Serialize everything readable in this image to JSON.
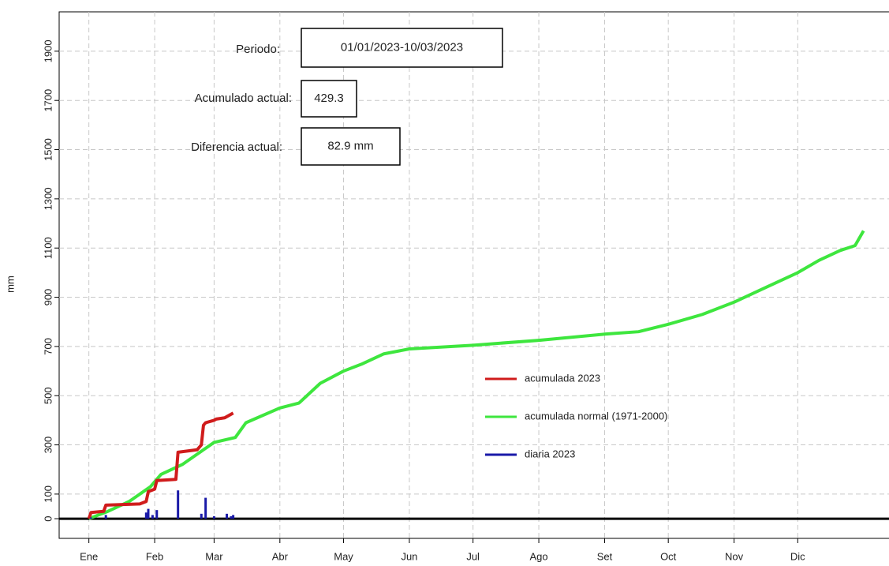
{
  "chart_data": {
    "type": "line",
    "y_label": "mm",
    "xlim": [
      -13,
      378
    ],
    "ylim": [
      -80,
      2060
    ],
    "xticks": [
      {
        "value": 1,
        "label": "Ene"
      },
      {
        "value": 32,
        "label": "Feb"
      },
      {
        "value": 60,
        "label": "Mar"
      },
      {
        "value": 91,
        "label": "Abr"
      },
      {
        "value": 121,
        "label": "May"
      },
      {
        "value": 152,
        "label": "Jun"
      },
      {
        "value": 182,
        "label": "Jul"
      },
      {
        "value": 213,
        "label": "Ago"
      },
      {
        "value": 244,
        "label": "Set"
      },
      {
        "value": 274,
        "label": "Oct"
      },
      {
        "value": 305,
        "label": "Nov"
      },
      {
        "value": 335,
        "label": "Dic"
      }
    ],
    "yticks": [
      0,
      100,
      300,
      500,
      700,
      900,
      1100,
      1300,
      1500,
      1700,
      1900
    ],
    "grid": true,
    "series": [
      {
        "name": "acumulada 2023",
        "color": "#d01c1c",
        "kind": "line",
        "x": [
          1,
          2,
          8,
          9,
          25,
          28,
          29,
          32,
          33,
          42,
          43,
          52,
          54,
          55,
          56,
          60,
          61,
          65,
          66,
          69
        ],
        "values": [
          0,
          25,
          30,
          55,
          60,
          70,
          110,
          120,
          155,
          160,
          270,
          280,
          300,
          380,
          390,
          400,
          405,
          410,
          415,
          429.3
        ]
      },
      {
        "name": "acumulada normal (1971-2000)",
        "color": "#3ee63e",
        "kind": "line",
        "x": [
          1,
          10,
          20,
          30,
          35,
          45,
          55,
          60,
          70,
          75,
          91,
          100,
          110,
          121,
          130,
          140,
          152,
          182,
          213,
          244,
          260,
          274,
          290,
          305,
          320,
          335,
          345,
          355,
          362,
          366
        ],
        "values": [
          0,
          30,
          70,
          130,
          180,
          220,
          280,
          310,
          330,
          390,
          450,
          470,
          550,
          600,
          630,
          670,
          690,
          705,
          725,
          750,
          760,
          790,
          830,
          880,
          940,
          1000,
          1050,
          1090,
          1110,
          1170
        ]
      },
      {
        "name": "diaria 2023",
        "color": "#1a1aa8",
        "kind": "bar",
        "x": [
          2,
          9,
          28,
          29,
          31,
          33,
          43,
          54,
          56,
          60,
          66,
          68,
          69
        ],
        "values": [
          5,
          15,
          25,
          40,
          15,
          35,
          115,
          20,
          85,
          10,
          20,
          10,
          15
        ]
      }
    ],
    "annotations": [
      {
        "label": "Periodo:",
        "value": "01/01/2023-10/03/2023"
      },
      {
        "label": "Acumulado actual:",
        "value": "429.3"
      },
      {
        "label": "Diferencia actual:",
        "value": "82.9 mm"
      }
    ]
  }
}
